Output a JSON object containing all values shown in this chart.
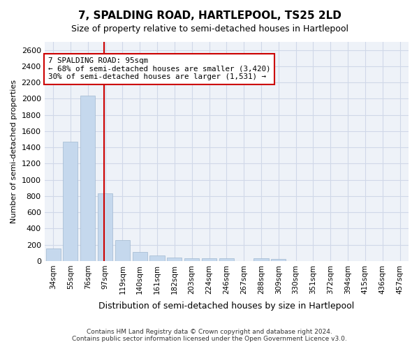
{
  "title": "7, SPALDING ROAD, HARTLEPOOL, TS25 2LD",
  "subtitle": "Size of property relative to semi-detached houses in Hartlepool",
  "xlabel": "Distribution of semi-detached houses by size in Hartlepool",
  "ylabel": "Number of semi-detached properties",
  "categories": [
    "34sqm",
    "55sqm",
    "76sqm",
    "97sqm",
    "119sqm",
    "140sqm",
    "161sqm",
    "182sqm",
    "203sqm",
    "224sqm",
    "246sqm",
    "267sqm",
    "288sqm",
    "309sqm",
    "330sqm",
    "351sqm",
    "372sqm",
    "394sqm",
    "415sqm",
    "436sqm",
    "457sqm"
  ],
  "values": [
    155,
    1470,
    2040,
    835,
    255,
    115,
    65,
    45,
    35,
    30,
    30,
    0,
    30,
    25,
    0,
    0,
    0,
    0,
    0,
    0,
    0
  ],
  "bar_color": "#c5d8ed",
  "bar_edgecolor": "#a0b8d0",
  "property_line_x": 95,
  "property_line_label": "7 SPALDING ROAD: 95sqm",
  "annotation_line1": "← 68% of semi-detached houses are smaller (3,420)",
  "annotation_line2": "30% of semi-detached houses are larger (1,531) →",
  "annotation_box_color": "#ffffff",
  "annotation_box_edge": "#cc0000",
  "vline_color": "#cc0000",
  "ylim": [
    0,
    2700
  ],
  "yticks": [
    0,
    200,
    400,
    600,
    800,
    1000,
    1200,
    1400,
    1600,
    1800,
    2000,
    2200,
    2400,
    2600
  ],
  "grid_color": "#d0d8e8",
  "bg_color": "#eef2f8",
  "footer1": "Contains HM Land Registry data © Crown copyright and database right 2024.",
  "footer2": "Contains public sector information licensed under the Open Government Licence v3.0."
}
